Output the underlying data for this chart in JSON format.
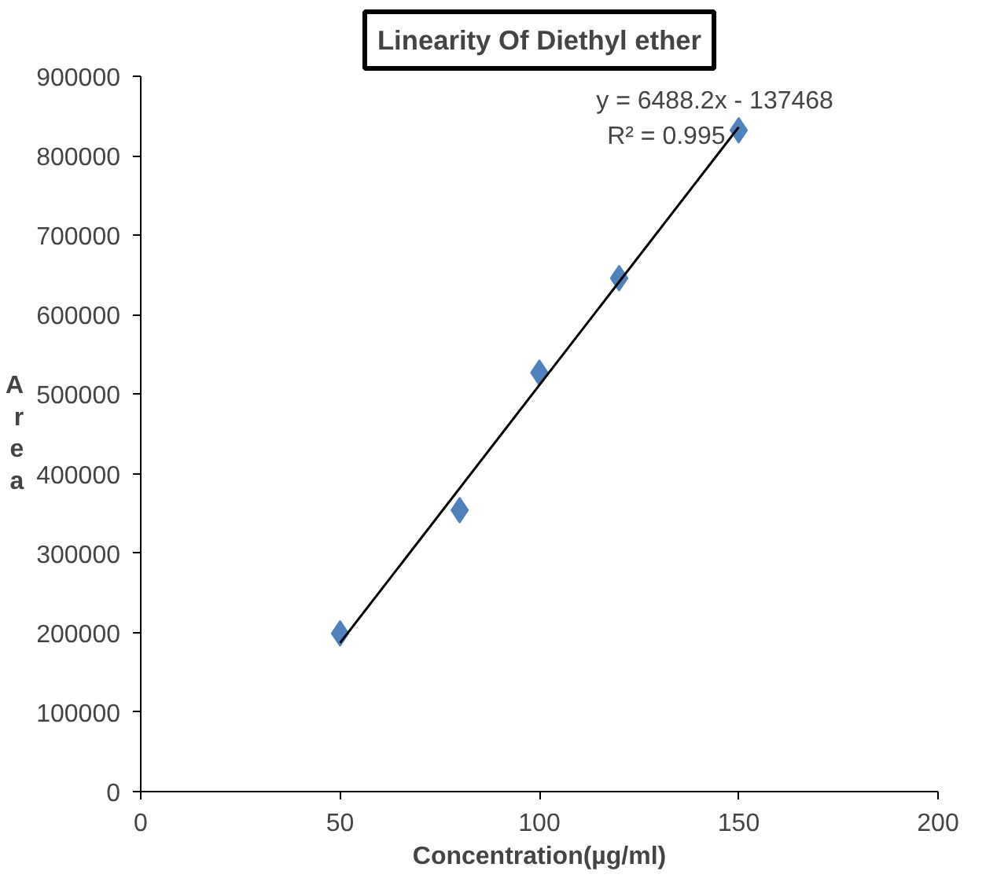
{
  "chart_data": {
    "type": "scatter",
    "title": "Linearity Of Diethyl ether",
    "xlabel": "Concentration(µg/ml)",
    "ylabel": "Area",
    "x": [
      50,
      80,
      100,
      120,
      150
    ],
    "series": [
      {
        "color": "#4f81bd",
        "values": [
          199000,
          354000,
          527000,
          646000,
          832000
        ],
        "marker": "diamond"
      },
      {
        "type": "line",
        "color": "#000000",
        "x": [
          50,
          150
        ],
        "values": [
          187000,
          836000
        ],
        "marker": "none"
      }
    ],
    "annotations": [
      "y = 6488.2x - 137468",
      "R² = 0.995"
    ],
    "xlim": [
      0,
      200
    ],
    "xticks": [
      0,
      50,
      100,
      150,
      200
    ],
    "ylim": [
      0,
      900000
    ],
    "yticks": [
      0,
      100000,
      200000,
      300000,
      400000,
      500000,
      600000,
      700000,
      800000,
      900000
    ],
    "grid": false
  }
}
